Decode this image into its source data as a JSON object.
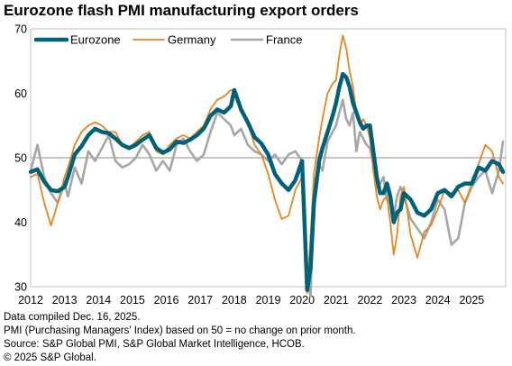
{
  "title": "Eurozone flash PMI manufacturing export orders",
  "footer": {
    "line1": "Data compiled Dec. 16, 2025.",
    "line2": "PMI (Purchasing Managers' Index) based on 50 = no change on prior month.",
    "line3": "Source: S&P Global PMI, S&P Global Market Intelligence, HCOB.",
    "line4": "© 2025 S&P Global."
  },
  "chart_data": {
    "type": "line",
    "title": "Eurozone flash PMI manufacturing export orders",
    "xlabel": "",
    "ylabel": "",
    "xlim": [
      2012,
      2026
    ],
    "ylim": [
      30,
      70
    ],
    "yticks": [
      30,
      40,
      50,
      60,
      70
    ],
    "xticks": [
      "2012",
      "2013",
      "2014",
      "2015",
      "2016",
      "2017",
      "2018",
      "2019",
      "2020",
      "2021",
      "2022",
      "2023",
      "2024",
      "2025"
    ],
    "reference_line": 50,
    "legend": "top-left",
    "series": [
      {
        "name": "Eurozone",
        "color": "#00627a",
        "x": [
          2012.0,
          2012.2,
          2012.4,
          2012.6,
          2012.8,
          2013.0,
          2013.1,
          2013.3,
          2013.5,
          2013.7,
          2013.9,
          2014.1,
          2014.3,
          2014.5,
          2014.7,
          2014.9,
          2015.1,
          2015.3,
          2015.5,
          2015.7,
          2015.9,
          2016.1,
          2016.3,
          2016.5,
          2016.7,
          2016.9,
          2017.1,
          2017.3,
          2017.5,
          2017.7,
          2017.9,
          2018.0,
          2018.2,
          2018.4,
          2018.6,
          2018.8,
          2019.0,
          2019.2,
          2019.4,
          2019.6,
          2019.8,
          2020.0,
          2020.15,
          2020.25,
          2020.35,
          2020.5,
          2020.6,
          2020.75,
          2020.9,
          2021.0,
          2021.1,
          2021.2,
          2021.3,
          2021.4,
          2021.5,
          2021.6,
          2021.7,
          2021.8,
          2021.9,
          2022.0,
          2022.1,
          2022.2,
          2022.3,
          2022.4,
          2022.5,
          2022.6,
          2022.7,
          2022.8,
          2022.9,
          2023.0,
          2023.2,
          2023.4,
          2023.6,
          2023.8,
          2024.0,
          2024.2,
          2024.4,
          2024.6,
          2024.8,
          2025.0,
          2025.2,
          2025.4,
          2025.6,
          2025.8,
          2025.92
        ],
        "values": [
          47.8,
          48.2,
          46.3,
          45.0,
          44.8,
          45.5,
          47.0,
          50.5,
          51.8,
          53.5,
          54.5,
          54.0,
          53.8,
          53.0,
          52.0,
          51.5,
          52.0,
          52.8,
          53.5,
          51.5,
          50.8,
          51.3,
          52.5,
          52.3,
          52.8,
          53.5,
          54.5,
          56.5,
          57.5,
          57.0,
          58.0,
          60.5,
          57.5,
          55.5,
          53.2,
          52.2,
          50.5,
          47.5,
          46.0,
          45.0,
          46.5,
          49.5,
          29.5,
          33.0,
          43.0,
          49.5,
          51.5,
          54.0,
          56.5,
          58.5,
          61.0,
          63.0,
          62.5,
          61.0,
          58.5,
          57.0,
          55.5,
          54.5,
          55.0,
          55.0,
          51.0,
          47.0,
          44.5,
          44.5,
          46.0,
          44.0,
          40.0,
          41.5,
          42.0,
          44.5,
          43.5,
          41.5,
          41.0,
          42.0,
          44.5,
          45.0,
          44.0,
          45.5,
          46.0,
          46.0,
          48.5,
          48.0,
          49.5,
          49.0,
          47.8
        ]
      },
      {
        "name": "Germany",
        "color": "#e8851f",
        "x": [
          2012.0,
          2012.2,
          2012.4,
          2012.6,
          2012.8,
          2013.0,
          2013.1,
          2013.3,
          2013.5,
          2013.7,
          2013.9,
          2014.1,
          2014.3,
          2014.5,
          2014.7,
          2014.9,
          2015.1,
          2015.3,
          2015.5,
          2015.7,
          2015.9,
          2016.1,
          2016.3,
          2016.5,
          2016.7,
          2016.9,
          2017.1,
          2017.3,
          2017.5,
          2017.7,
          2017.9,
          2018.0,
          2018.2,
          2018.4,
          2018.6,
          2018.8,
          2019.0,
          2019.2,
          2019.4,
          2019.6,
          2019.8,
          2020.0,
          2020.15,
          2020.25,
          2020.35,
          2020.5,
          2020.6,
          2020.75,
          2020.9,
          2021.0,
          2021.1,
          2021.2,
          2021.3,
          2021.4,
          2021.5,
          2021.6,
          2021.7,
          2021.8,
          2021.9,
          2022.0,
          2022.1,
          2022.2,
          2022.3,
          2022.4,
          2022.5,
          2022.6,
          2022.7,
          2022.8,
          2022.9,
          2023.0,
          2023.2,
          2023.4,
          2023.6,
          2023.8,
          2024.0,
          2024.2,
          2024.4,
          2024.6,
          2024.8,
          2025.0,
          2025.2,
          2025.4,
          2025.6,
          2025.8,
          2025.92
        ],
        "values": [
          47.0,
          47.5,
          43.0,
          39.5,
          43.0,
          47.0,
          48.5,
          52.0,
          54.0,
          55.0,
          55.5,
          55.0,
          54.0,
          54.0,
          52.0,
          51.5,
          52.5,
          53.5,
          54.0,
          51.0,
          50.5,
          52.0,
          53.0,
          53.5,
          53.0,
          54.0,
          55.0,
          57.5,
          59.0,
          59.5,
          60.5,
          60.5,
          58.0,
          55.5,
          52.0,
          50.5,
          47.5,
          43.5,
          40.5,
          41.0,
          45.0,
          47.0,
          29.0,
          38.0,
          47.5,
          53.0,
          56.0,
          60.0,
          61.5,
          62.0,
          66.0,
          69.0,
          67.0,
          63.5,
          61.0,
          57.0,
          55.0,
          56.0,
          55.0,
          53.0,
          48.0,
          44.0,
          42.0,
          43.5,
          44.0,
          40.0,
          35.0,
          38.0,
          44.0,
          45.5,
          38.0,
          34.5,
          38.5,
          39.5,
          42.0,
          45.0,
          44.5,
          45.0,
          43.0,
          46.0,
          49.0,
          52.0,
          51.0,
          47.0,
          46.0
        ]
      },
      {
        "name": "France",
        "color": "#a6a6a6",
        "x": [
          2012.0,
          2012.2,
          2012.4,
          2012.6,
          2012.8,
          2013.0,
          2013.1,
          2013.3,
          2013.5,
          2013.7,
          2013.9,
          2014.1,
          2014.3,
          2014.5,
          2014.7,
          2014.9,
          2015.1,
          2015.3,
          2015.5,
          2015.7,
          2015.9,
          2016.1,
          2016.3,
          2016.5,
          2016.7,
          2016.9,
          2017.1,
          2017.3,
          2017.5,
          2017.7,
          2017.9,
          2018.0,
          2018.2,
          2018.4,
          2018.6,
          2018.8,
          2019.0,
          2019.2,
          2019.4,
          2019.6,
          2019.8,
          2020.0,
          2020.15,
          2020.25,
          2020.35,
          2020.5,
          2020.6,
          2020.75,
          2020.9,
          2021.0,
          2021.1,
          2021.2,
          2021.3,
          2021.4,
          2021.5,
          2021.6,
          2021.7,
          2021.8,
          2021.9,
          2022.0,
          2022.1,
          2022.2,
          2022.3,
          2022.4,
          2022.5,
          2022.6,
          2022.7,
          2022.8,
          2022.9,
          2023.0,
          2023.2,
          2023.4,
          2023.6,
          2023.8,
          2024.0,
          2024.2,
          2024.4,
          2024.6,
          2024.8,
          2025.0,
          2025.2,
          2025.4,
          2025.6,
          2025.8,
          2025.92
        ],
        "values": [
          48.0,
          52.0,
          47.0,
          44.5,
          43.0,
          46.0,
          44.0,
          48.5,
          46.0,
          51.0,
          49.5,
          51.5,
          53.5,
          49.5,
          48.5,
          49.0,
          50.0,
          52.0,
          50.5,
          48.0,
          49.5,
          48.0,
          52.0,
          53.0,
          51.0,
          49.5,
          50.5,
          54.0,
          57.0,
          56.0,
          55.0,
          53.5,
          54.5,
          52.0,
          51.0,
          50.5,
          49.5,
          50.5,
          49.0,
          50.5,
          51.0,
          49.5,
          31.0,
          28.5,
          45.5,
          49.0,
          48.0,
          52.5,
          54.0,
          55.0,
          57.0,
          59.0,
          56.0,
          55.0,
          57.0,
          51.0,
          54.0,
          53.0,
          52.0,
          51.5,
          49.0,
          45.5,
          46.0,
          47.0,
          43.5,
          43.0,
          41.0,
          44.0,
          45.5,
          44.0,
          40.5,
          39.0,
          37.5,
          40.0,
          43.5,
          42.0,
          36.5,
          37.5,
          43.0,
          45.5,
          47.0,
          48.0,
          44.5,
          48.0,
          52.5
        ]
      }
    ]
  }
}
